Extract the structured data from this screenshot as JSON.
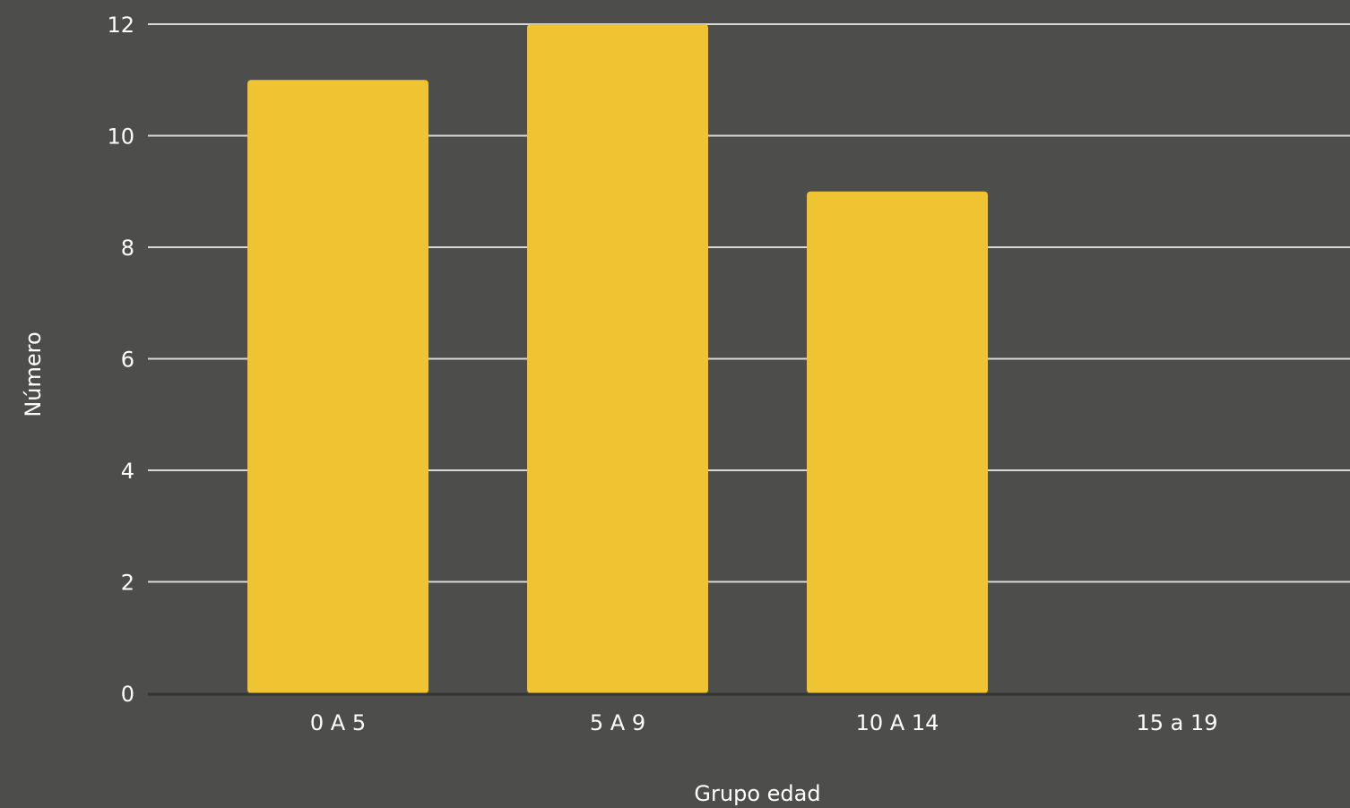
{
  "chart_data": {
    "type": "bar",
    "categories": [
      "0 A 5",
      "5 A 9",
      "10 A 14",
      "15 a 19"
    ],
    "values": [
      11,
      12,
      9,
      0
    ],
    "title": "",
    "xlabel": "Grupo edad",
    "ylabel": "Número",
    "ylim": [
      0,
      12
    ],
    "yticks": [
      "0",
      "2",
      "4",
      "6",
      "8",
      "10",
      "12"
    ],
    "grid": true,
    "colors": {
      "background": "#4d4d4b",
      "bar": "#f0c332",
      "grid": "#d9d9d9",
      "axis": "#333333",
      "text": "#ffffff"
    }
  }
}
